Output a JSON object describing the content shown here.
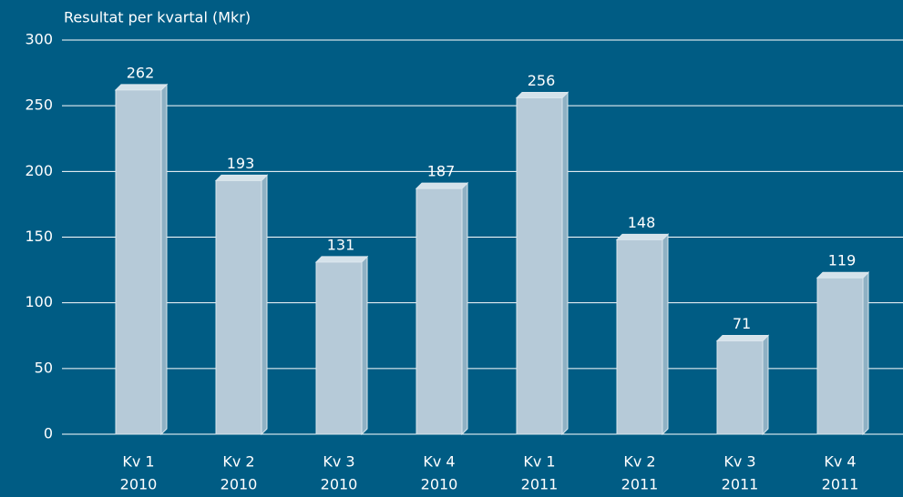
{
  "chart_data": {
    "type": "bar",
    "title": "Resultat per kvartal (Mkr)",
    "categories": [
      [
        "Kv 1",
        "2010"
      ],
      [
        "Kv 2",
        "2010"
      ],
      [
        "Kv 3",
        "2010"
      ],
      [
        "Kv 4",
        "2010"
      ],
      [
        "Kv 1",
        "2011"
      ],
      [
        "Kv 2",
        "2011"
      ],
      [
        "Kv 3",
        "2011"
      ],
      [
        "Kv 4",
        "2011"
      ]
    ],
    "values": [
      262,
      193,
      131,
      187,
      256,
      148,
      71,
      119
    ],
    "color": "#b6cad8",
    "ylim": [
      0,
      300
    ],
    "yticks": [
      0,
      50,
      100,
      150,
      200,
      250,
      300
    ],
    "grid": true
  }
}
